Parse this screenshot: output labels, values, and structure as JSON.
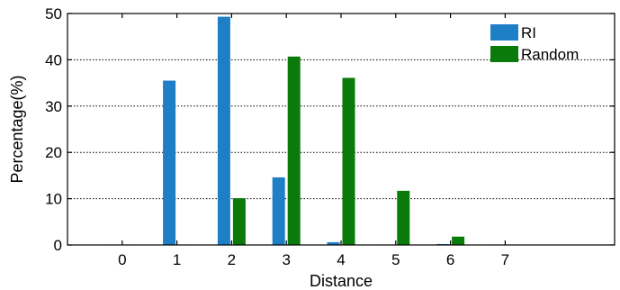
{
  "chart_data": {
    "type": "bar",
    "categories": [
      "0",
      "1",
      "2",
      "3",
      "4",
      "5",
      "6",
      "7"
    ],
    "series": [
      {
        "name": "RI",
        "color": "#1E7EC6",
        "values": [
          0.1,
          35.5,
          49.3,
          14.6,
          0.6,
          0.1,
          0.2,
          0.1
        ]
      },
      {
        "name": "Random",
        "color": "#0A7A0A",
        "values": [
          0.1,
          0.1,
          10.1,
          40.7,
          36.1,
          11.7,
          1.8,
          0.1
        ]
      }
    ],
    "xlim": [
      -1,
      9
    ],
    "ylim": [
      0,
      50
    ],
    "yticks": [
      0,
      10,
      20,
      30,
      40,
      50
    ],
    "xlabel": "Distance",
    "ylabel": "Percentage(%)",
    "grid": "horizontal-dotted",
    "legend_position": "top-right"
  }
}
